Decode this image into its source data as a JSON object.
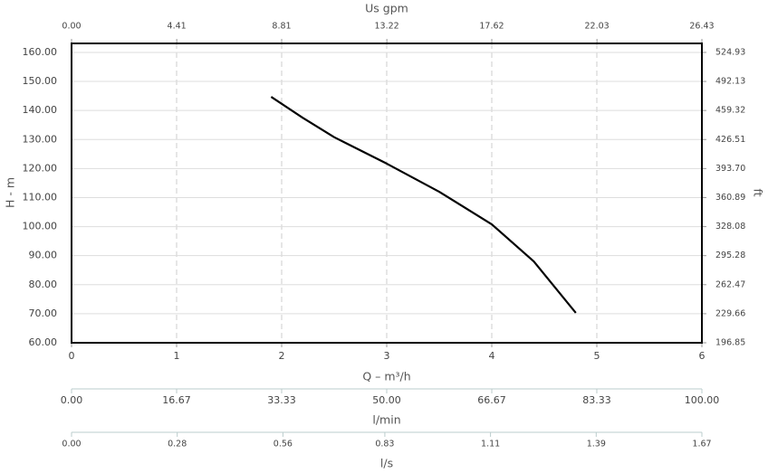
{
  "chart_data": {
    "type": "line",
    "x2label": "Us gpm",
    "xlabel": "Q – m³/h",
    "ylabel": "H - m",
    "y2label": "ft",
    "x": [
      1.9,
      2.2,
      2.5,
      3.0,
      3.5,
      4.0,
      4.4,
      4.8
    ],
    "values": [
      144.7,
      137.5,
      130.8,
      121.7,
      112,
      100.8,
      88,
      70.3
    ],
    "color": "#000000",
    "xlim": [
      0,
      6
    ],
    "xticks": [
      0,
      1,
      2,
      3,
      4,
      5,
      6
    ],
    "ylim": [
      60,
      163.1
    ],
    "yticks": [
      {
        "value": 60,
        "label": "60.00"
      },
      {
        "value": 70,
        "label": "70.00"
      },
      {
        "value": 80,
        "label": "80.00"
      },
      {
        "value": 90,
        "label": "90.00"
      },
      {
        "value": 100,
        "label": "100.00"
      },
      {
        "value": 110,
        "label": "110.00"
      },
      {
        "value": 120,
        "label": "120.00"
      },
      {
        "value": 130,
        "label": "130.00"
      },
      {
        "value": 140,
        "label": "140.00"
      },
      {
        "value": 150,
        "label": "150.00"
      },
      {
        "value": 160,
        "label": "160.00"
      }
    ],
    "y2lim": [
      196.85,
      535.1
    ],
    "y2ticks": [
      196.85,
      229.66,
      262.47,
      295.28,
      328.08,
      360.89,
      {
        "value": 393.7,
        "label": "393.70"
      },
      426.51,
      459.32,
      492.13,
      524.93
    ],
    "x2lim": [
      0,
      26.43
    ],
    "x2ticks": [
      {
        "value": 0,
        "label": "0.00"
      },
      4.41,
      8.81,
      13.22,
      17.62,
      22.03,
      26.43
    ],
    "extra_axes": [
      {
        "label": "l/min",
        "lim": [
          0,
          100
        ],
        "ticks": [
          {
            "value": 0,
            "label": "0.00"
          },
          16.67,
          33.33,
          {
            "value": 50,
            "label": "50.00"
          },
          66.67,
          83.33,
          {
            "value": 100,
            "label": "100.00"
          }
        ]
      },
      {
        "label": "l/s",
        "lim": [
          0,
          1.67
        ],
        "ticks": [
          {
            "value": 0,
            "label": "0.00"
          },
          0.28,
          0.56,
          0.83,
          1.11,
          1.39,
          1.67
        ]
      }
    ],
    "grid": true
  }
}
